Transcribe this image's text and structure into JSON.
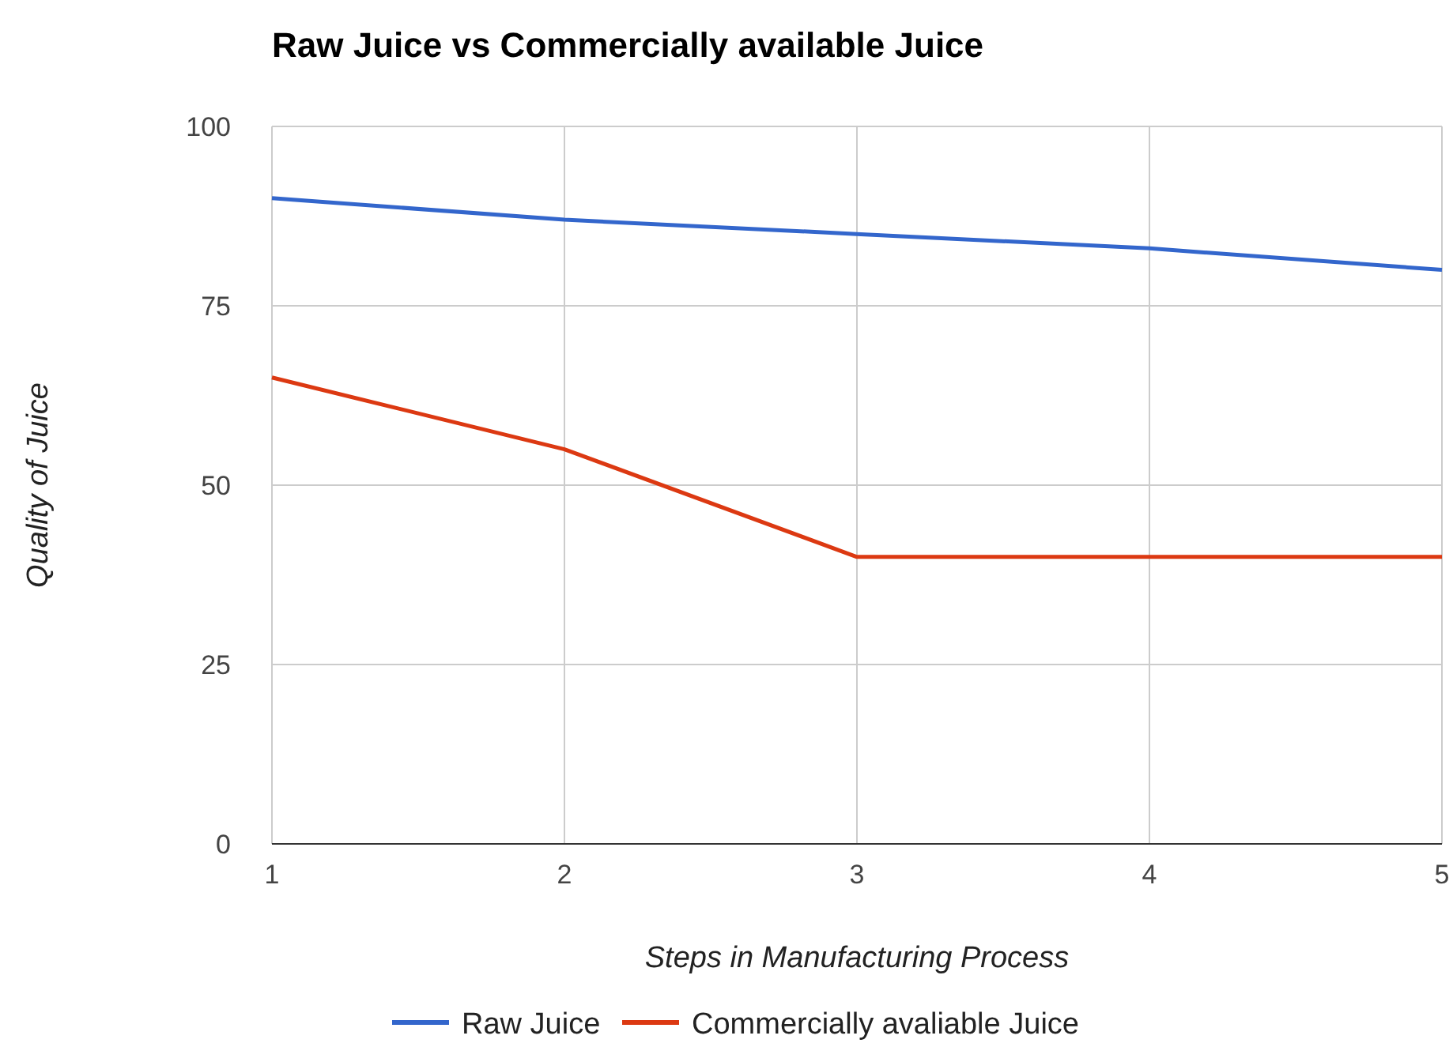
{
  "chart_data": {
    "type": "line",
    "title": "Raw Juice vs Commercially available Juice",
    "xlabel": "Steps in Manufacturing Process",
    "ylabel": "Quality of Juice",
    "x": [
      1,
      2,
      3,
      4,
      5
    ],
    "xlim": [
      1,
      5
    ],
    "xticks": [
      1,
      2,
      3,
      4,
      5
    ],
    "ylim": [
      0,
      100
    ],
    "yticks": [
      0,
      25,
      50,
      75,
      100
    ],
    "grid": true,
    "legend": "bottom",
    "marker": "none",
    "line_style": "solid",
    "series": [
      {
        "name": "Raw Juice",
        "color": "#3366cc",
        "values": [
          90,
          87,
          85,
          83,
          80
        ]
      },
      {
        "name": "Commercially avaliable Juice",
        "color": "#dc3912",
        "values": [
          65,
          55,
          40,
          40,
          40
        ]
      }
    ]
  }
}
